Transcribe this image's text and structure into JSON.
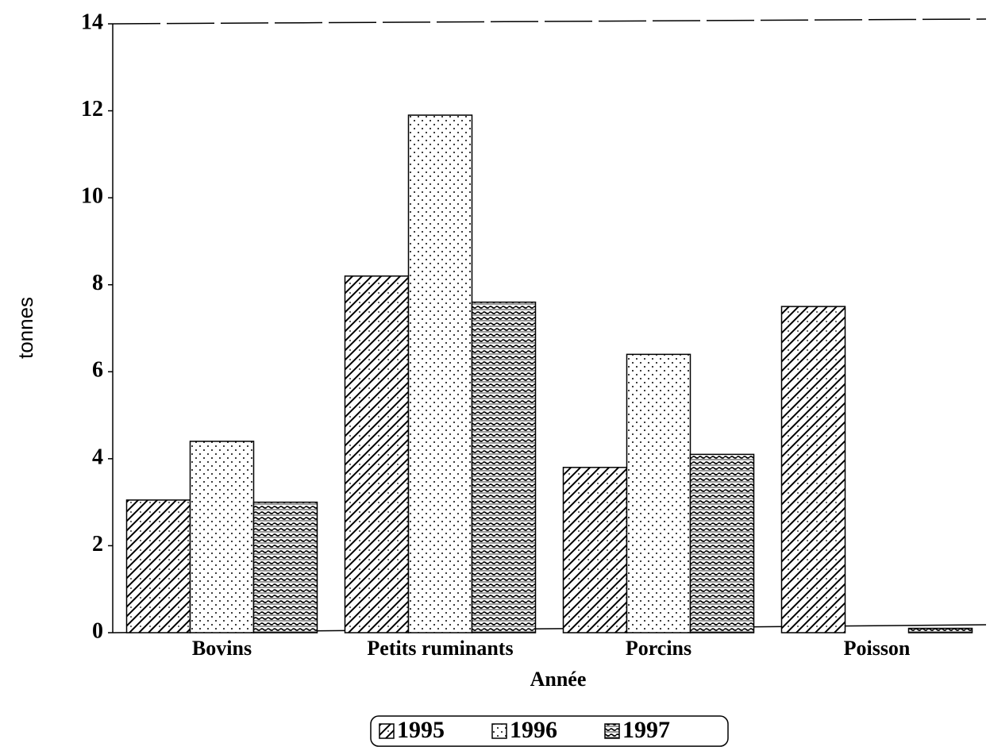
{
  "chart_data": {
    "type": "bar",
    "categories": [
      "Bovins",
      "Petits ruminants",
      "Porcins",
      "Poisson"
    ],
    "series": [
      {
        "name": "1995",
        "color": "#000000",
        "values": [
          3.05,
          8.2,
          3.8,
          7.5
        ]
      },
      {
        "name": "1996",
        "color": "#000000",
        "values": [
          4.4,
          11.9,
          6.4,
          0
        ]
      },
      {
        "name": "1997",
        "color": "#000000",
        "values": [
          3.0,
          7.6,
          4.1,
          0.1
        ]
      }
    ],
    "x_label": "Année",
    "y_label": "tonnes",
    "ylim": [
      0,
      14
    ],
    "yticks": [
      0,
      2,
      4,
      6,
      8,
      10,
      12,
      14
    ],
    "legend": "bottom"
  }
}
